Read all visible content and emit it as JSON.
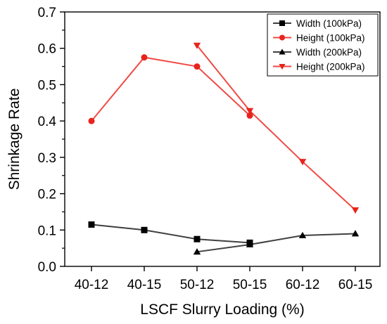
{
  "chart_data": {
    "type": "line",
    "xlabel": "LSCF Slurry Loading (%)",
    "ylabel": "Shrinkage Rate",
    "categories": [
      "40-12",
      "40-15",
      "50-12",
      "50-15",
      "60-12",
      "60-15"
    ],
    "ylim": [
      0.0,
      0.7
    ],
    "yticks": [
      "0.0",
      "0.1",
      "0.2",
      "0.3",
      "0.4",
      "0.5",
      "0.6",
      "0.7"
    ],
    "grid": false,
    "legend_position": "top-right",
    "series": [
      {
        "name": "Width (100kPa)",
        "values": [
          0.115,
          0.1,
          0.075,
          0.065,
          null,
          null
        ],
        "color": "#000000",
        "marker": "square"
      },
      {
        "name": "Height (100kPa)",
        "values": [
          0.4,
          0.575,
          0.55,
          0.415,
          null,
          null
        ],
        "color": "#e8231c",
        "marker": "circle"
      },
      {
        "name": "Width (200kPa)",
        "values": [
          null,
          null,
          0.04,
          0.06,
          0.085,
          0.09
        ],
        "color": "#000000",
        "marker": "triangle-up"
      },
      {
        "name": "Height (200kPa)",
        "values": [
          null,
          null,
          0.608,
          0.428,
          0.288,
          0.155
        ],
        "color": "#e8231c",
        "marker": "triangle-down"
      }
    ]
  }
}
